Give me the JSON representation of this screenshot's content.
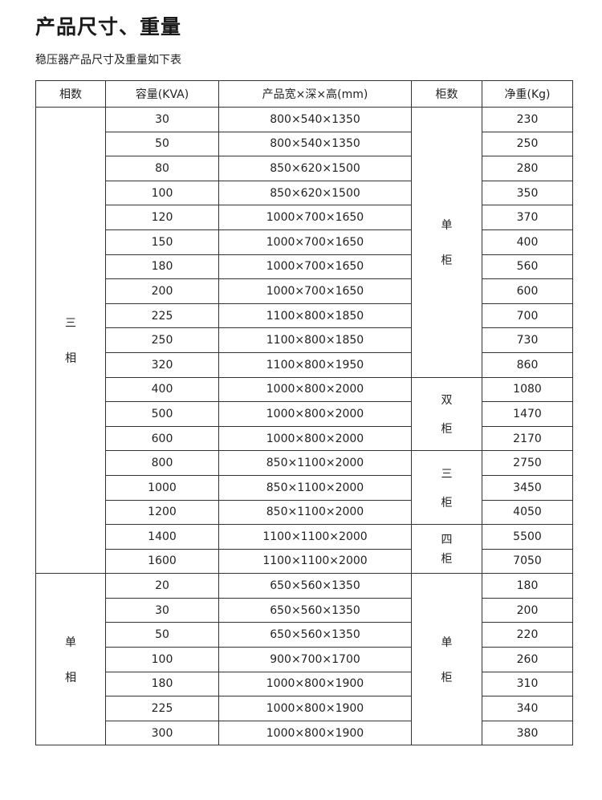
{
  "title": "产品尺寸、重量",
  "subtitle": "稳压器产品尺寸及重量如下表",
  "table": {
    "headers": [
      "相数",
      "容量(KVA)",
      "产品宽×深×高(mm)",
      "柜数",
      "净重(Kg)"
    ],
    "rows": [
      {
        "kva": "30",
        "dims": "800×540×1350",
        "weight": "230"
      },
      {
        "kva": "50",
        "dims": "800×540×1350",
        "weight": "250"
      },
      {
        "kva": "80",
        "dims": "850×620×1500",
        "weight": "280"
      },
      {
        "kva": "100",
        "dims": "850×620×1500",
        "weight": "350"
      },
      {
        "kva": "120",
        "dims": "1000×700×1650",
        "weight": "370"
      },
      {
        "kva": "150",
        "dims": "1000×700×1650",
        "weight": "400"
      },
      {
        "kva": "180",
        "dims": "1000×700×1650",
        "weight": "560"
      },
      {
        "kva": "200",
        "dims": "1000×700×1650",
        "weight": "600"
      },
      {
        "kva": "225",
        "dims": "1100×800×1850",
        "weight": "700"
      },
      {
        "kva": "250",
        "dims": "1100×800×1850",
        "weight": "730"
      },
      {
        "kva": "320",
        "dims": "1100×800×1950",
        "weight": "860"
      },
      {
        "kva": "400",
        "dims": "1000×800×2000",
        "weight": "1080"
      },
      {
        "kva": "500",
        "dims": "1000×800×2000",
        "weight": "1470"
      },
      {
        "kva": "600",
        "dims": "1000×800×2000",
        "weight": "2170"
      },
      {
        "kva": "800",
        "dims": "850×1100×2000",
        "weight": "2750"
      },
      {
        "kva": "1000",
        "dims": "850×1100×2000",
        "weight": "3450"
      },
      {
        "kva": "1200",
        "dims": "850×1100×2000",
        "weight": "4050"
      },
      {
        "kva": "1400",
        "dims": "1100×1100×2000",
        "weight": "5500"
      },
      {
        "kva": "1600",
        "dims": "1100×1100×2000",
        "weight": "7050"
      },
      {
        "kva": "20",
        "dims": "650×560×1350",
        "weight": "180"
      },
      {
        "kva": "30",
        "dims": "650×560×1350",
        "weight": "200"
      },
      {
        "kva": "50",
        "dims": "650×560×1350",
        "weight": "220"
      },
      {
        "kva": "100",
        "dims": "900×700×1700",
        "weight": "260"
      },
      {
        "kva": "180",
        "dims": "1000×800×1900",
        "weight": "310"
      },
      {
        "kva": "225",
        "dims": "1000×800×1900",
        "weight": "340"
      },
      {
        "kva": "300",
        "dims": "1000×800×1900",
        "weight": "380"
      }
    ],
    "phase_groups": [
      {
        "chars": [
          "三",
          "相"
        ],
        "span": 19
      },
      {
        "chars": [
          "单",
          "相"
        ],
        "span": 7
      }
    ],
    "cabinet_groups": [
      {
        "chars": [
          "单",
          "柜"
        ],
        "span": 11
      },
      {
        "chars": [
          "双",
          "柜"
        ],
        "span": 3
      },
      {
        "chars": [
          "三",
          "柜"
        ],
        "span": 3
      },
      {
        "chars": [
          "四",
          "柜"
        ],
        "span": 2
      },
      {
        "chars": [
          "单",
          "柜"
        ],
        "span": 7
      }
    ]
  }
}
